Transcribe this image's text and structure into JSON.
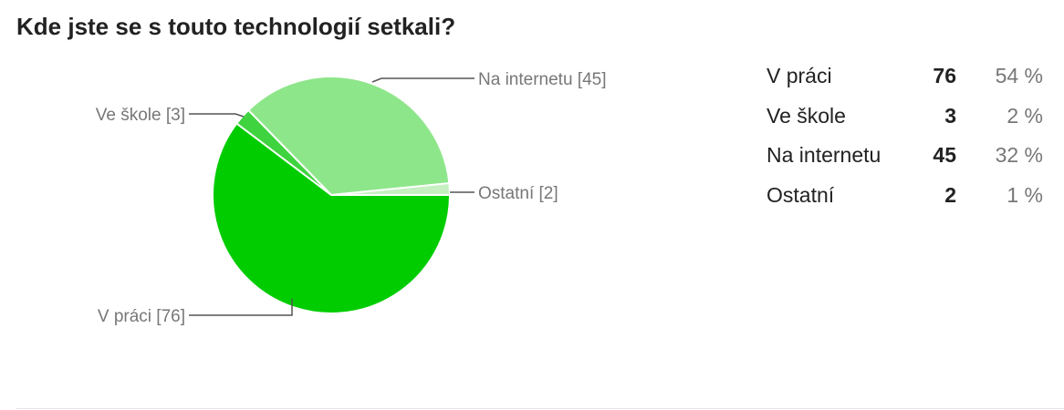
{
  "question": {
    "title": "Kde jste se s touto technologií setkali?"
  },
  "chart_data": {
    "type": "pie",
    "categories": [
      "V práci",
      "Ve škole",
      "Na internetu",
      "Ostatní"
    ],
    "values": [
      76,
      3,
      45,
      2
    ],
    "slice_labels": [
      "V práci [76]",
      "Ve škole [3]",
      "Na internetu [45]",
      "Ostatní [2]"
    ],
    "colors": [
      "#00cc00",
      "#3fd33f",
      "#8ee68a",
      "#c6f0c2"
    ]
  },
  "summary": {
    "rows": [
      {
        "label": "V práci",
        "count": "76",
        "percent": "54 %"
      },
      {
        "label": "Ve škole",
        "count": "3",
        "percent": "2 %"
      },
      {
        "label": "Na internetu",
        "count": "45",
        "percent": "32 %"
      },
      {
        "label": "Ostatní",
        "count": "2",
        "percent": "1 %"
      }
    ]
  }
}
